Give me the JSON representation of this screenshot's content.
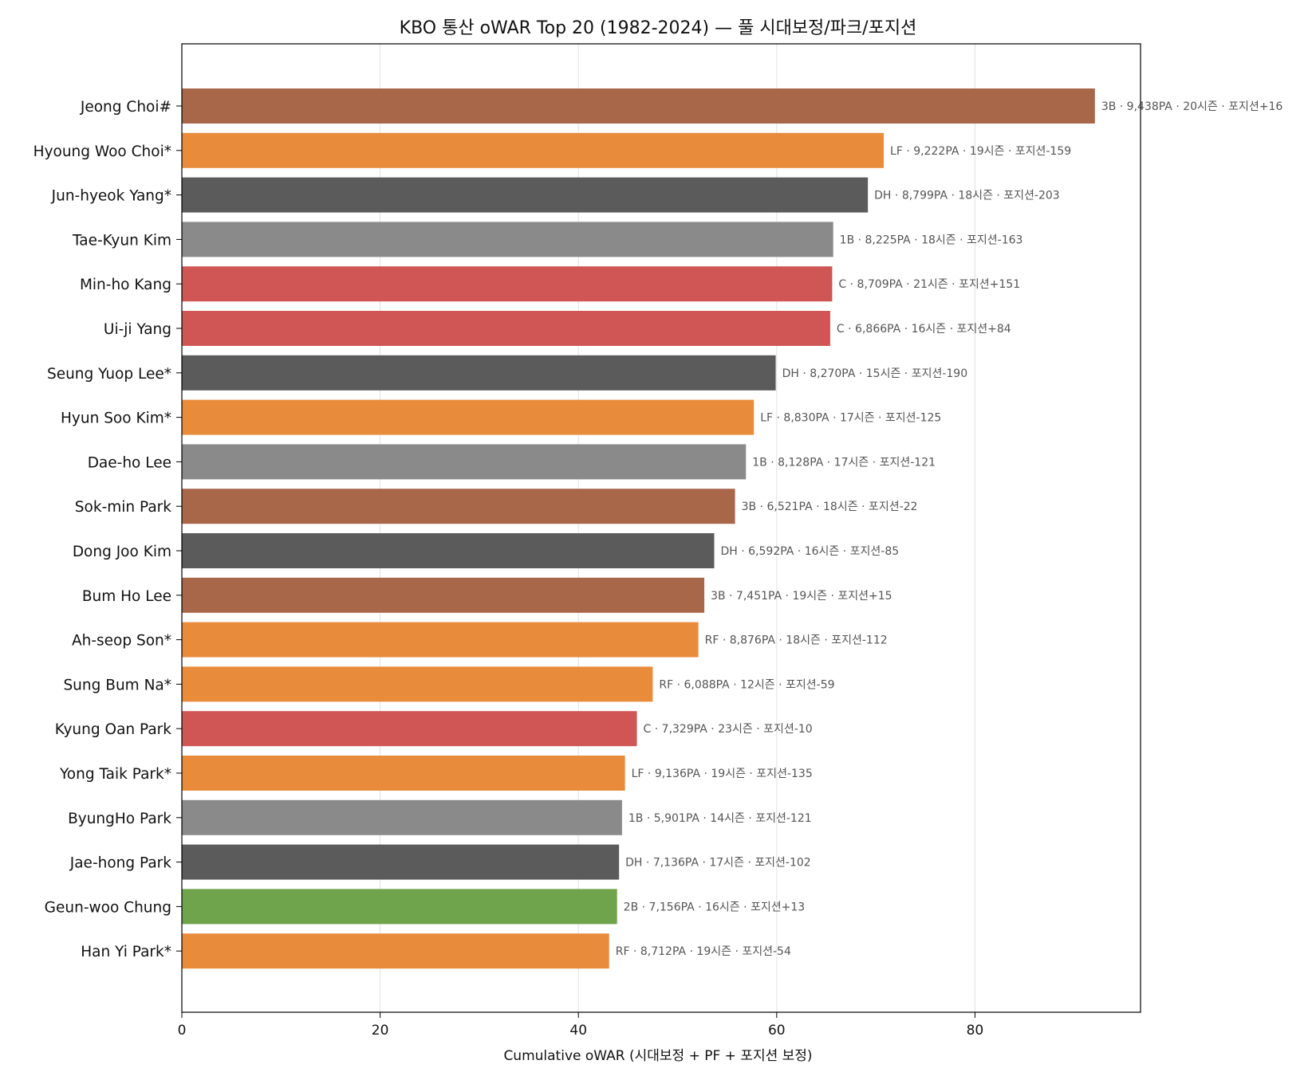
{
  "chart_data": {
    "type": "bar",
    "orientation": "horizontal",
    "title": "KBO 통산 oWAR Top 20 (1982-2024) — 풀 시대보정/파크/포지션",
    "xlabel": "Cumulative oWAR (시대보정 + PF + 포지션 보정)",
    "ylabel": "",
    "xlim": [
      0,
      96.7
    ],
    "xticks": [
      0,
      20,
      40,
      60,
      80
    ],
    "grid": "vertical",
    "categories": [
      "Jeong Choi#",
      "Hyoung Woo Choi*",
      "Jun-hyeok Yang*",
      "Tae-Kyun Kim",
      "Min-ho Kang",
      "Ui-ji Yang",
      "Seung Yuop Lee*",
      "Hyun Soo Kim*",
      "Dae-ho Lee",
      "Sok-min Park",
      "Dong Joo Kim",
      "Bum Ho Lee",
      "Ah-seop Son*",
      "Sung Bum Na*",
      "Kyung Oan Park",
      "Yong Taik Park*",
      "ByungHo Park",
      "Jae-hong Park",
      "Geun-woo Chung",
      "Han Yi Park*"
    ],
    "values": [
      92.1,
      70.8,
      69.2,
      65.7,
      65.6,
      65.4,
      59.9,
      57.7,
      56.9,
      55.8,
      53.7,
      52.7,
      52.1,
      47.5,
      45.9,
      44.7,
      44.4,
      44.1,
      43.9,
      43.1
    ],
    "positions": [
      "3B",
      "LF",
      "DH",
      "1B",
      "C",
      "C",
      "DH",
      "LF",
      "1B",
      "3B",
      "DH",
      "3B",
      "RF",
      "RF",
      "C",
      "LF",
      "1B",
      "DH",
      "2B",
      "RF"
    ],
    "annotations": [
      "3B · 9,438PA · 20시즌 · 포지션+16",
      "LF · 9,222PA · 19시즌 · 포지션-159",
      "DH · 8,799PA · 18시즌 · 포지션-203",
      "1B · 8,225PA · 18시즌 · 포지션-163",
      "C · 8,709PA · 21시즌 · 포지션+151",
      "C · 6,866PA · 16시즌 · 포지션+84",
      "DH · 8,270PA · 15시즌 · 포지션-190",
      "LF · 8,830PA · 17시즌 · 포지션-125",
      "1B · 8,128PA · 17시즌 · 포지션-121",
      "3B · 6,521PA · 18시즌 · 포지션-22",
      "DH · 6,592PA · 16시즌 · 포지션-85",
      "3B · 7,451PA · 19시즌 · 포지션+15",
      "RF · 8,876PA · 18시즌 · 포지션-112",
      "RF · 6,088PA · 12시즌 · 포지션-59",
      "C · 7,329PA · 23시즌 · 포지션-10",
      "LF · 9,136PA · 19시즌 · 포지션-135",
      "1B · 5,901PA · 14시즌 · 포지션-121",
      "DH · 7,136PA · 17시즌 · 포지션-102",
      "2B · 7,156PA · 16시즌 · 포지션+13",
      "RF · 8,712PA · 19시즌 · 포지션-54"
    ],
    "position_colors": {
      "3B": "#a9674a",
      "LF": "#e88c3c",
      "RF": "#e88c3c",
      "DH": "#5b5b5b",
      "1B": "#8a8a8a",
      "C": "#d05555",
      "2B": "#70a44c"
    }
  }
}
